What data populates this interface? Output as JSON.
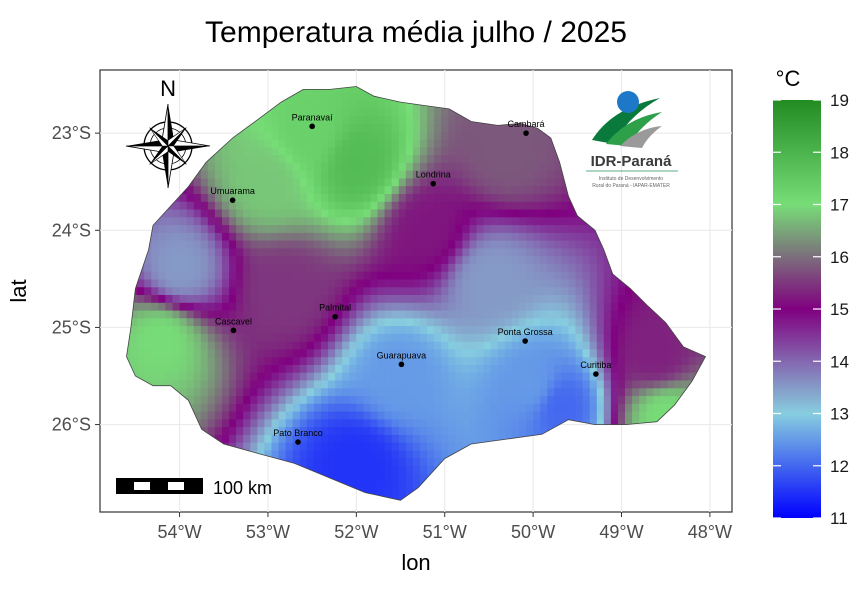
{
  "title": "Temperatura média julho / 2025",
  "axes": {
    "xlabel": "lon",
    "ylabel": "lat",
    "xticks": [
      {
        "lon": -54,
        "label": "54°W"
      },
      {
        "lon": -53,
        "label": "53°W"
      },
      {
        "lon": -52,
        "label": "52°W"
      },
      {
        "lon": -51,
        "label": "51°W"
      },
      {
        "lon": -50,
        "label": "50°W"
      },
      {
        "lon": -49,
        "label": "49°W"
      },
      {
        "lon": -48,
        "label": "48°W"
      }
    ],
    "yticks": [
      {
        "lat": -23,
        "label": "23°S"
      },
      {
        "lat": -24,
        "label": "24°S"
      },
      {
        "lat": -25,
        "label": "25°S"
      },
      {
        "lat": -26,
        "label": "26°S"
      }
    ],
    "xlim": [
      -54.9,
      -47.75
    ],
    "ylim": [
      -26.9,
      -22.35
    ]
  },
  "legend": {
    "title": "°C",
    "min": 11,
    "max": 19,
    "ticks": [
      "19",
      "18",
      "17",
      "16",
      "15",
      "14",
      "13",
      "12",
      "11"
    ],
    "colors": [
      "#0000ff",
      "#87cedf",
      "#800080",
      "#32cd32",
      "#228b22"
    ]
  },
  "scale_bar": {
    "label": "100 km"
  },
  "north_arrow": {
    "label": "N"
  },
  "logo": {
    "name": "IDR-Paraná",
    "subtitle_1": "Instituto de Desenvolvimento",
    "subtitle_2": "Rural do Paraná - IAPAR-EMATER"
  },
  "chart_data": {
    "type": "heatmap",
    "title": "Temperatura média julho / 2025",
    "xlabel": "lon",
    "ylabel": "lat",
    "unit": "°C",
    "color_range": [
      11,
      19
    ],
    "cities": [
      {
        "name": "Paranavaí",
        "lon": -52.5,
        "lat": -22.93
      },
      {
        "name": "Cambará",
        "lon": -50.08,
        "lat": -23.0
      },
      {
        "name": "Londrina",
        "lon": -51.13,
        "lat": -23.52
      },
      {
        "name": "Umuarama",
        "lon": -53.4,
        "lat": -23.69
      },
      {
        "name": "Palmital",
        "lon": -52.24,
        "lat": -24.89
      },
      {
        "name": "Cascavel",
        "lon": -53.39,
        "lat": -25.03
      },
      {
        "name": "Ponta Grossa",
        "lon": -50.09,
        "lat": -25.14
      },
      {
        "name": "Guarapuava",
        "lon": -51.49,
        "lat": -25.38
      },
      {
        "name": "Curitiba",
        "lon": -49.29,
        "lat": -25.48
      },
      {
        "name": "Pato Branco",
        "lon": -52.66,
        "lat": -26.18
      }
    ],
    "temperature_centers": [
      {
        "lon": -52.0,
        "lat": -23.3,
        "value": 17.8
      },
      {
        "lon": -52.5,
        "lat": -23.0,
        "value": 17.3
      },
      {
        "lon": -53.0,
        "lat": -23.5,
        "value": 16.8
      },
      {
        "lon": -54.0,
        "lat": -24.4,
        "value": 13.5
      },
      {
        "lon": -54.2,
        "lat": -25.1,
        "value": 17.0
      },
      {
        "lon": -51.5,
        "lat": -25.5,
        "value": 12.5
      },
      {
        "lon": -52.0,
        "lat": -26.4,
        "value": 11.5
      },
      {
        "lon": -50.0,
        "lat": -25.6,
        "value": 12.5
      },
      {
        "lon": -49.7,
        "lat": -25.8,
        "value": 12.0
      },
      {
        "lon": -50.5,
        "lat": -24.5,
        "value": 13.5
      },
      {
        "lon": -51.2,
        "lat": -24.0,
        "value": 15.2
      },
      {
        "lon": -52.8,
        "lat": -24.6,
        "value": 15.5
      },
      {
        "lon": -48.6,
        "lat": -25.3,
        "value": 15.3
      },
      {
        "lon": -48.5,
        "lat": -25.9,
        "value": 17.0
      },
      {
        "lon": -50.3,
        "lat": -23.2,
        "value": 15.8
      }
    ]
  }
}
